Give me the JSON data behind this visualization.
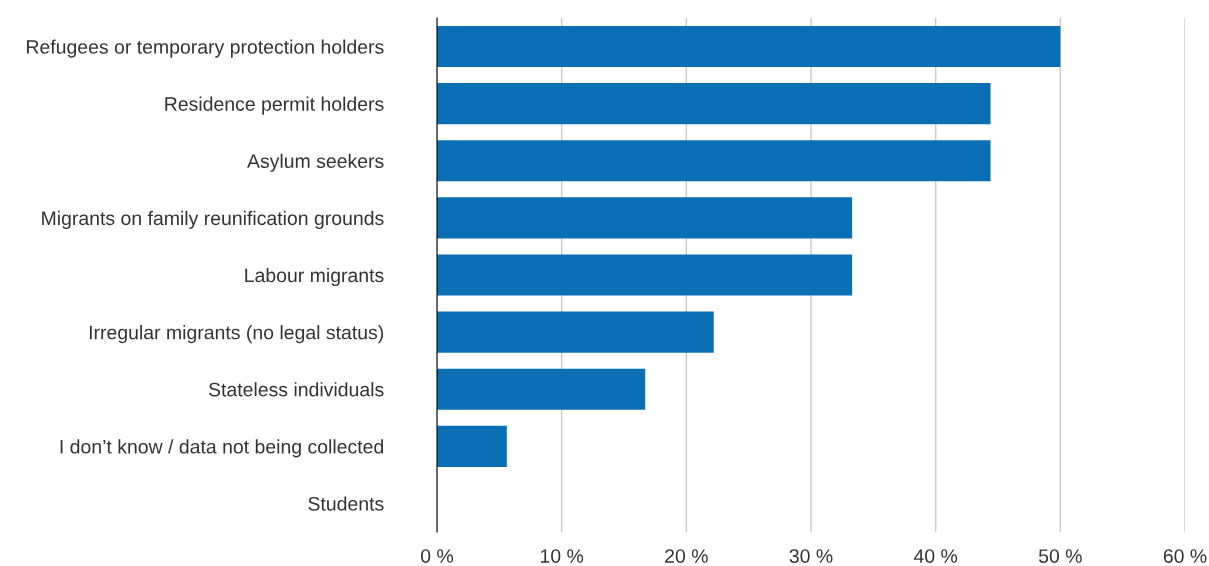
{
  "chart_data": {
    "type": "bar",
    "orientation": "horizontal",
    "categories": [
      "Refugees or temporary protection holders",
      "Residence permit holders",
      "Asylum seekers",
      "Migrants on family reunification grounds",
      "Labour migrants",
      "Irregular migrants (no legal status)",
      "Stateless individuals",
      "I don’t know / data not being collected",
      "Students"
    ],
    "values": [
      50.0,
      44.4,
      44.4,
      33.3,
      33.3,
      22.2,
      16.7,
      5.6,
      0
    ],
    "color": "#0a70b3",
    "xlim": [
      0,
      60
    ],
    "xticks": [
      {
        "value": 0,
        "label": "0 %"
      },
      {
        "value": 10,
        "label": "10 %"
      },
      {
        "value": 20,
        "label": "20 %"
      },
      {
        "value": 30,
        "label": "30 %"
      },
      {
        "value": 40,
        "label": "40 %"
      },
      {
        "value": 50,
        "label": "50 %"
      },
      {
        "value": 60,
        "label": "60 %"
      }
    ],
    "grid": "x"
  }
}
